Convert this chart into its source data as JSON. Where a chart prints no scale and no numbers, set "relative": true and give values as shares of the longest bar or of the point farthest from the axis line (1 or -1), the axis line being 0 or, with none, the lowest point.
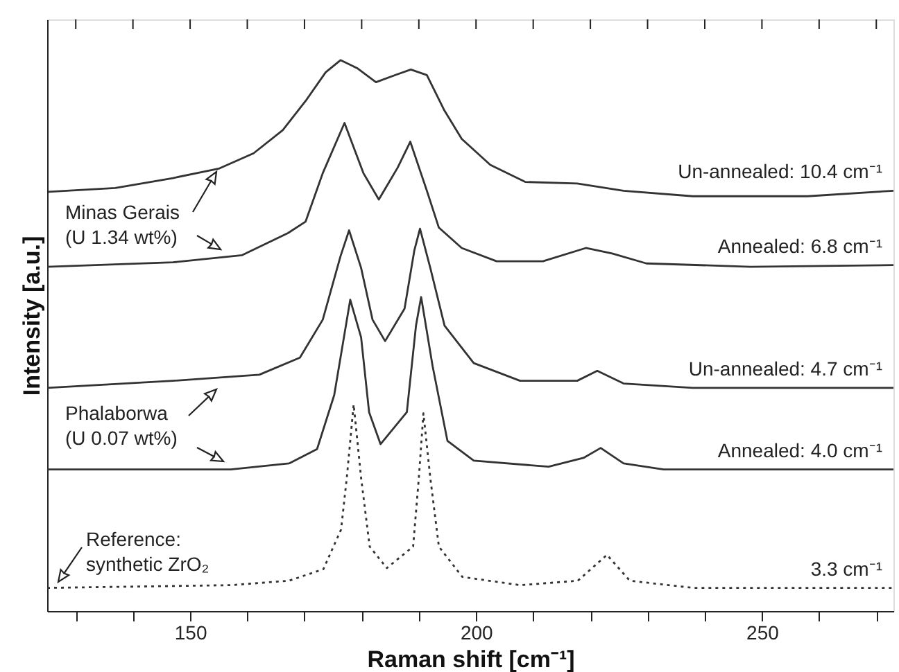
{
  "chart_data": {
    "type": "line",
    "relative": true,
    "xlabel": "Raman shift  [cm⁻¹]",
    "ylabel": "Intensity  [a.u.]",
    "xlim": [
      125,
      273
    ],
    "xticks": [
      {
        "value": 130,
        "label": null
      },
      {
        "value": 140,
        "label": null
      },
      150,
      {
        "value": 160,
        "label": null
      },
      {
        "value": 170,
        "label": null
      },
      {
        "value": 180,
        "label": null
      },
      {
        "value": 190,
        "label": null
      },
      200,
      {
        "value": 210,
        "label": null
      },
      {
        "value": 220,
        "label": null
      },
      {
        "value": 230,
        "label": null
      },
      {
        "value": 240,
        "label": null
      },
      250,
      {
        "value": 260,
        "label": null
      },
      {
        "value": 270,
        "label": null
      }
    ],
    "grid": false,
    "legend": false,
    "marker": "none",
    "series": [
      {
        "name": "Un-annealed: 10.4 cm⁻¹",
        "color": "#333333",
        "line_style": "solid",
        "x": [
          125.2,
          136.9,
          147,
          155.0,
          161.1,
          166.2,
          170.2,
          173.7,
          176.3,
          179.3,
          182.5,
          185.9,
          188.6,
          191.4,
          194.4,
          197.5,
          202.5,
          208.6,
          217.7,
          225.8,
          237.9,
          258.0,
          273
        ],
        "values": [
          0.761,
          0.768,
          0.786,
          0.803,
          0.831,
          0.873,
          0.926,
          0.978,
          1.0,
          0.985,
          0.96,
          0.973,
          0.983,
          0.973,
          0.91,
          0.857,
          0.81,
          0.779,
          0.776,
          0.763,
          0.753,
          0.753,
          0.763
        ]
      },
      {
        "name": "Annealed: 6.8 cm⁻¹",
        "color": "#333333",
        "line_style": "solid",
        "x": [
          125,
          147,
          159.1,
          167.1,
          170.2,
          173.2,
          177.0,
          180.3,
          183.0,
          186.3,
          188.5,
          191.4,
          193.5,
          197.5,
          203.6,
          211.7,
          219.2,
          223.8,
          229.8,
          248.0,
          273
        ],
        "values": [
          0.625,
          0.633,
          0.646,
          0.686,
          0.707,
          0.795,
          0.886,
          0.795,
          0.747,
          0.805,
          0.852,
          0.763,
          0.696,
          0.659,
          0.635,
          0.635,
          0.659,
          0.649,
          0.631,
          0.625,
          0.628
        ]
      },
      {
        "name": "Un-annealed: 4.7 cm⁻¹",
        "color": "#333333",
        "line_style": "solid",
        "x": [
          125,
          147,
          162.1,
          169.2,
          173.2,
          176.3,
          177.8,
          179.9,
          181.9,
          184.1,
          187.5,
          189.2,
          190.2,
          192.0,
          194.5,
          199.6,
          207.7,
          217.7,
          221.2,
          225.8,
          237.9,
          273
        ],
        "values": [
          0.405,
          0.418,
          0.429,
          0.46,
          0.529,
          0.644,
          0.691,
          0.623,
          0.529,
          0.49,
          0.549,
          0.654,
          0.694,
          0.623,
          0.518,
          0.45,
          0.418,
          0.418,
          0.436,
          0.413,
          0.405,
          0.405
        ]
      },
      {
        "name": "Annealed: 4.0 cm⁻¹",
        "color": "#333333",
        "line_style": "solid",
        "x": [
          125,
          157.1,
          167.3,
          172.2,
          175.2,
          178.0,
          179.9,
          181.3,
          183.3,
          187.9,
          189.5,
          190.4,
          192.4,
          195.0,
          199.6,
          212.7,
          218.8,
          221.8,
          225.8,
          232.8,
          273
        ],
        "values": [
          0.257,
          0.257,
          0.268,
          0.294,
          0.392,
          0.565,
          0.497,
          0.361,
          0.303,
          0.361,
          0.518,
          0.57,
          0.445,
          0.309,
          0.273,
          0.262,
          0.278,
          0.296,
          0.268,
          0.257,
          0.257
        ]
      },
      {
        "name": "3.3 cm⁻¹",
        "color": "#333333",
        "line_style": "dotted",
        "x": [
          125,
          157.2,
          167.3,
          173.3,
          176.4,
          177.4,
          178.6,
          179.9,
          181.4,
          184.4,
          189.0,
          190.0,
          190.8,
          192.0,
          193.5,
          197.6,
          207.7,
          217.8,
          222.9,
          226.9,
          238.0,
          273
        ],
        "values": [
          0.042,
          0.047,
          0.055,
          0.076,
          0.148,
          0.242,
          0.375,
          0.242,
          0.117,
          0.078,
          0.117,
          0.242,
          0.359,
          0.242,
          0.117,
          0.062,
          0.047,
          0.055,
          0.102,
          0.055,
          0.042,
          0.042
        ]
      }
    ],
    "annotations": [
      "Minas Gerais\n(U 1.34 wt%)",
      "Phalaborwa\n(U 0.07 wt%)",
      "Reference:\nsynthetic ZrO₂"
    ]
  }
}
